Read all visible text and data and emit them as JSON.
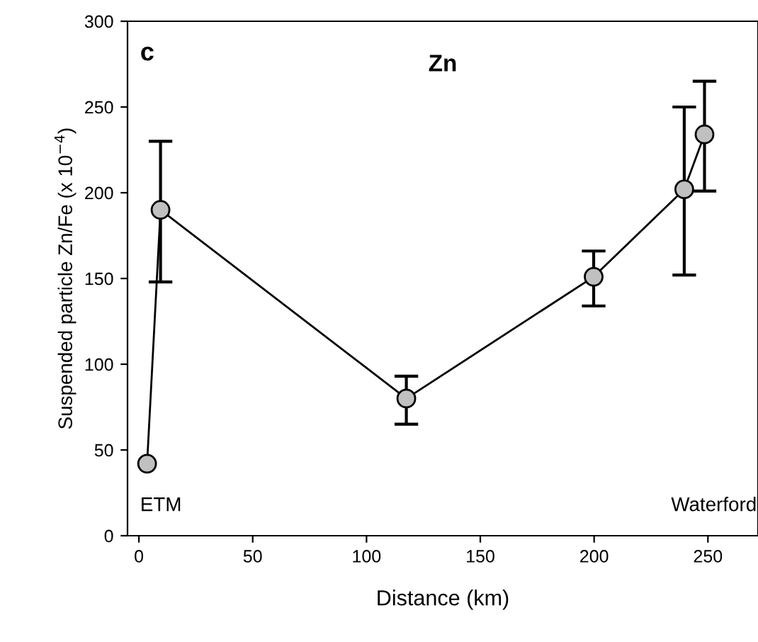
{
  "chart_data": {
    "type": "line",
    "title": "Zn",
    "xlabel": "Distance (km)",
    "ylabel": "Suspended particle Zn/Fe (x 10$^{−4}$)",
    "annotations": [
      "c",
      "ETM",
      "Waterford"
    ],
    "x": [
      3.6,
      9.5,
      117.5,
      199.8,
      239.6,
      248.5
    ],
    "series": [
      {
        "color": "#c0c0c0",
        "values": [
          42,
          190,
          80,
          151,
          202,
          234
        ],
        "errors": [
          null,
          [
            148,
            230
          ],
          [
            65,
            93
          ],
          [
            134,
            166
          ],
          [
            152,
            250
          ],
          [
            201,
            265
          ]
        ]
      }
    ],
    "xlim": [
      -5,
      272
    ],
    "ylim": [
      0,
      300
    ],
    "xticks": [
      0,
      50,
      100,
      150,
      200,
      250
    ],
    "yticks": [
      0,
      50,
      100,
      150,
      200,
      250,
      300
    ],
    "marker": "circle",
    "line_style": "solid",
    "grid": false,
    "legend": false
  }
}
